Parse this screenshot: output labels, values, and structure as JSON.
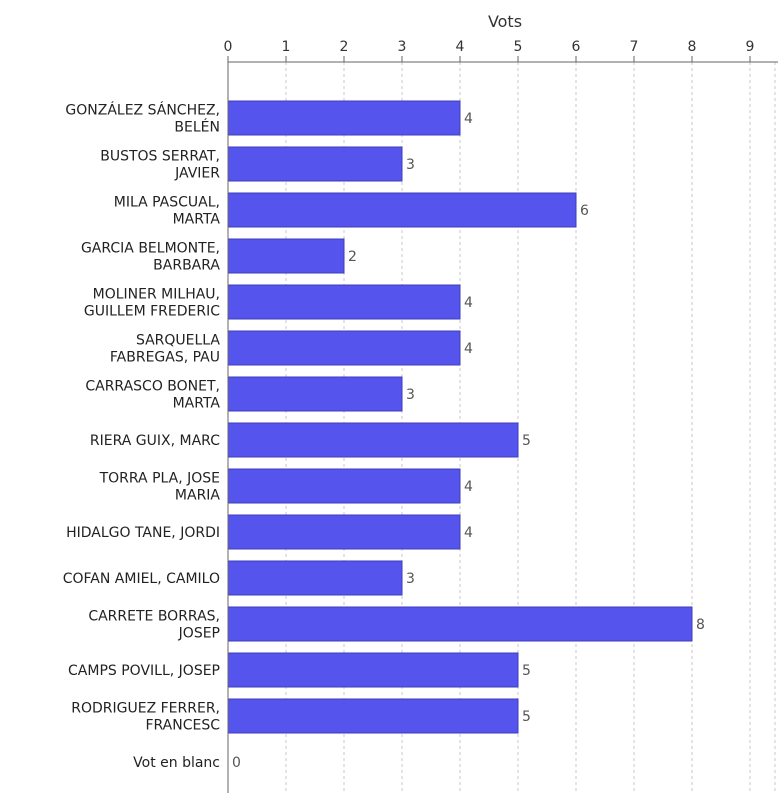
{
  "chart_data": {
    "type": "bar",
    "orientation": "horizontal",
    "title": "",
    "xlabel": "Vots",
    "xlabel_position": "top",
    "ylabel": "",
    "xlim": [
      0,
      9
    ],
    "xticks": [
      0,
      1,
      2,
      3,
      4,
      5,
      6,
      7,
      8,
      9
    ],
    "grid": true,
    "legend": "none",
    "bar_color": "#5555ee",
    "bar_border_color": "#3d3dbd",
    "categories": [
      [
        "GONZÁLEZ SÁNCHEZ,",
        "BELÉN"
      ],
      [
        "BUSTOS SERRAT,",
        "JAVIER"
      ],
      [
        "MILA PASCUAL,",
        "MARTA"
      ],
      [
        "GARCIA BELMONTE,",
        "BARBARA"
      ],
      [
        "MOLINER MILHAU,",
        "GUILLEM FREDERIC"
      ],
      [
        "SARQUELLA",
        "FABREGAS, PAU"
      ],
      [
        "CARRASCO BONET,",
        "MARTA"
      ],
      [
        "RIERA GUIX, MARC"
      ],
      [
        "TORRA PLA, JOSE",
        "MARIA"
      ],
      [
        "HIDALGO TANE, JORDI"
      ],
      [
        "COFAN AMIEL, CAMILO"
      ],
      [
        "CARRETE BORRAS,",
        "JOSEP"
      ],
      [
        "CAMPS POVILL, JOSEP"
      ],
      [
        "RODRIGUEZ FERRER,",
        "FRANCESC"
      ],
      [
        "Vot en blanc"
      ]
    ],
    "values": [
      4,
      3,
      6,
      2,
      4,
      4,
      3,
      5,
      4,
      4,
      3,
      8,
      5,
      5,
      0
    ]
  }
}
